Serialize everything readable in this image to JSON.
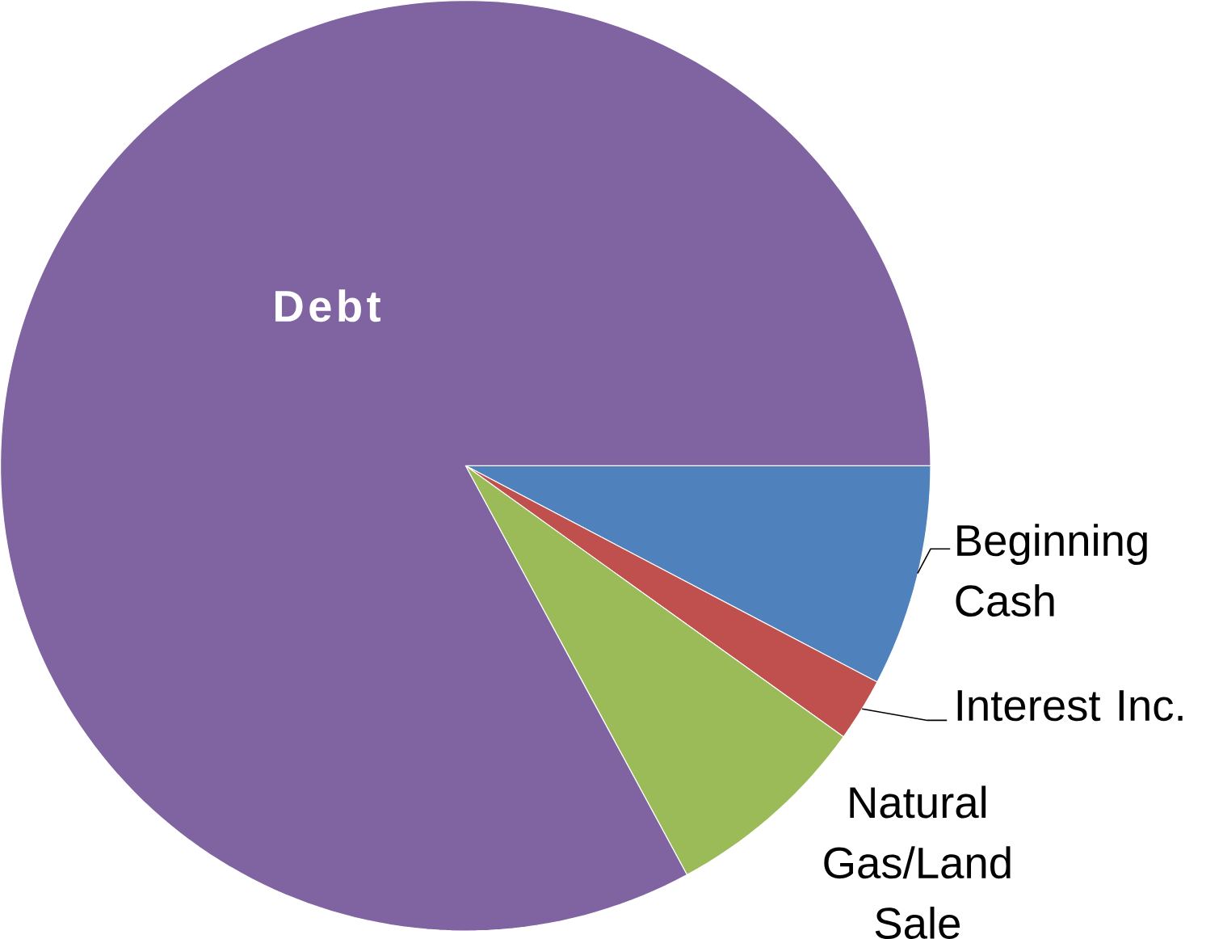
{
  "chart_data": {
    "type": "pie",
    "categories": [
      "Beginning Cash",
      "Interest Inc.",
      "Natural Gas/Land Sale",
      "Debt"
    ],
    "values": [
      7.7,
      2.2,
      7.2,
      82.9
    ],
    "colors": [
      "#4f81bd",
      "#c0504d",
      "#9bbb59",
      "#8064a2"
    ]
  }
}
